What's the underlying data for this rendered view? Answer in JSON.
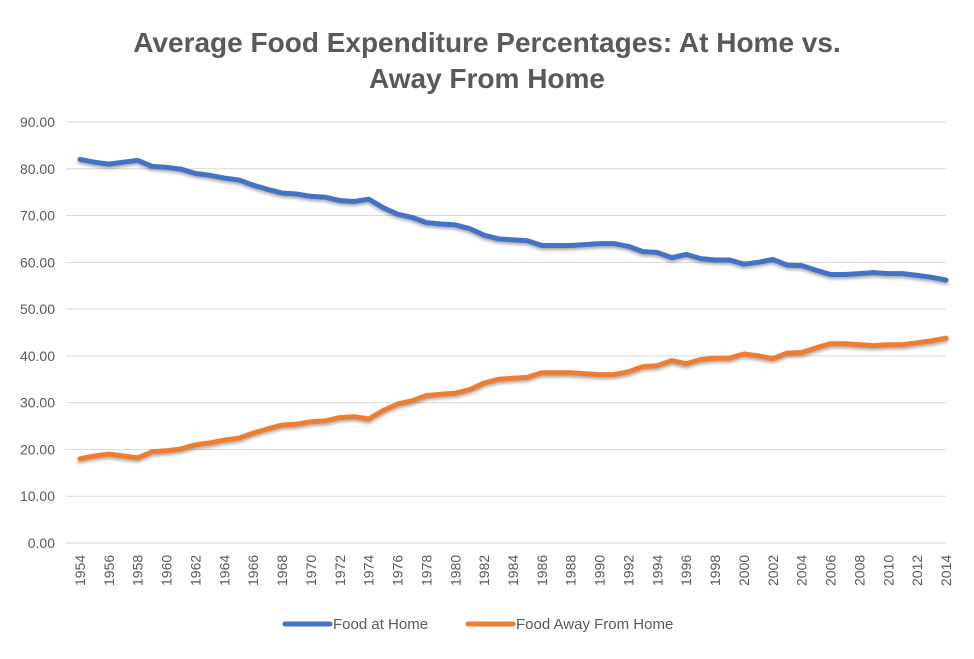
{
  "chart_data": {
    "type": "line",
    "title_lines": [
      "Average Food Expenditure Percentages: At Home vs.",
      "Away From Home"
    ],
    "xlabel": "",
    "ylabel": "",
    "ylim": [
      0,
      90
    ],
    "yticks": [
      "0.00",
      "10.00",
      "20.00",
      "30.00",
      "40.00",
      "50.00",
      "60.00",
      "70.00",
      "80.00",
      "90.00"
    ],
    "grid": true,
    "legend_position": "bottom",
    "x": [
      1954,
      1955,
      1956,
      1957,
      1958,
      1959,
      1960,
      1961,
      1962,
      1963,
      1964,
      1965,
      1966,
      1967,
      1968,
      1969,
      1970,
      1971,
      1972,
      1973,
      1974,
      1975,
      1976,
      1977,
      1978,
      1979,
      1980,
      1981,
      1982,
      1983,
      1984,
      1985,
      1986,
      1987,
      1988,
      1989,
      1990,
      1991,
      1992,
      1993,
      1994,
      1995,
      1996,
      1997,
      1998,
      1999,
      2000,
      2001,
      2002,
      2003,
      2004,
      2005,
      2006,
      2007,
      2008,
      2009,
      2010,
      2011,
      2012,
      2013,
      2014
    ],
    "series": [
      {
        "name": "Food at Home",
        "color": "#4472C4",
        "values": [
          82.0,
          81.4,
          81.0,
          81.4,
          81.8,
          80.5,
          80.3,
          79.9,
          79.0,
          78.6,
          78.0,
          77.6,
          76.5,
          75.6,
          74.8,
          74.6,
          74.1,
          73.9,
          73.2,
          73.0,
          73.5,
          71.7,
          70.3,
          69.6,
          68.5,
          68.2,
          68.0,
          67.2,
          65.8,
          65.0,
          64.8,
          64.6,
          63.6,
          63.6,
          63.6,
          63.8,
          64.0,
          64.0,
          63.4,
          62.3,
          62.1,
          61.0,
          61.7,
          60.8,
          60.5,
          60.5,
          59.6,
          60.0,
          60.6,
          59.4,
          59.3,
          58.3,
          57.4,
          57.4,
          57.6,
          57.8,
          57.6,
          57.6,
          57.2,
          56.8,
          56.2
        ]
      },
      {
        "name": "Food Away From Home",
        "color": "#ED7D31",
        "values": [
          18.0,
          18.6,
          19.0,
          18.6,
          18.2,
          19.5,
          19.7,
          20.1,
          21.0,
          21.4,
          22.0,
          22.4,
          23.5,
          24.4,
          25.2,
          25.4,
          25.9,
          26.1,
          26.8,
          27.0,
          26.5,
          28.3,
          29.7,
          30.4,
          31.5,
          31.8,
          32.0,
          32.8,
          34.2,
          35.0,
          35.2,
          35.4,
          36.4,
          36.4,
          36.4,
          36.2,
          36.0,
          36.0,
          36.6,
          37.7,
          37.9,
          39.0,
          38.3,
          39.2,
          39.5,
          39.5,
          40.4,
          40.0,
          39.4,
          40.6,
          40.7,
          41.7,
          42.6,
          42.6,
          42.4,
          42.2,
          42.4,
          42.4,
          42.8,
          43.2,
          43.8
        ]
      }
    ]
  }
}
